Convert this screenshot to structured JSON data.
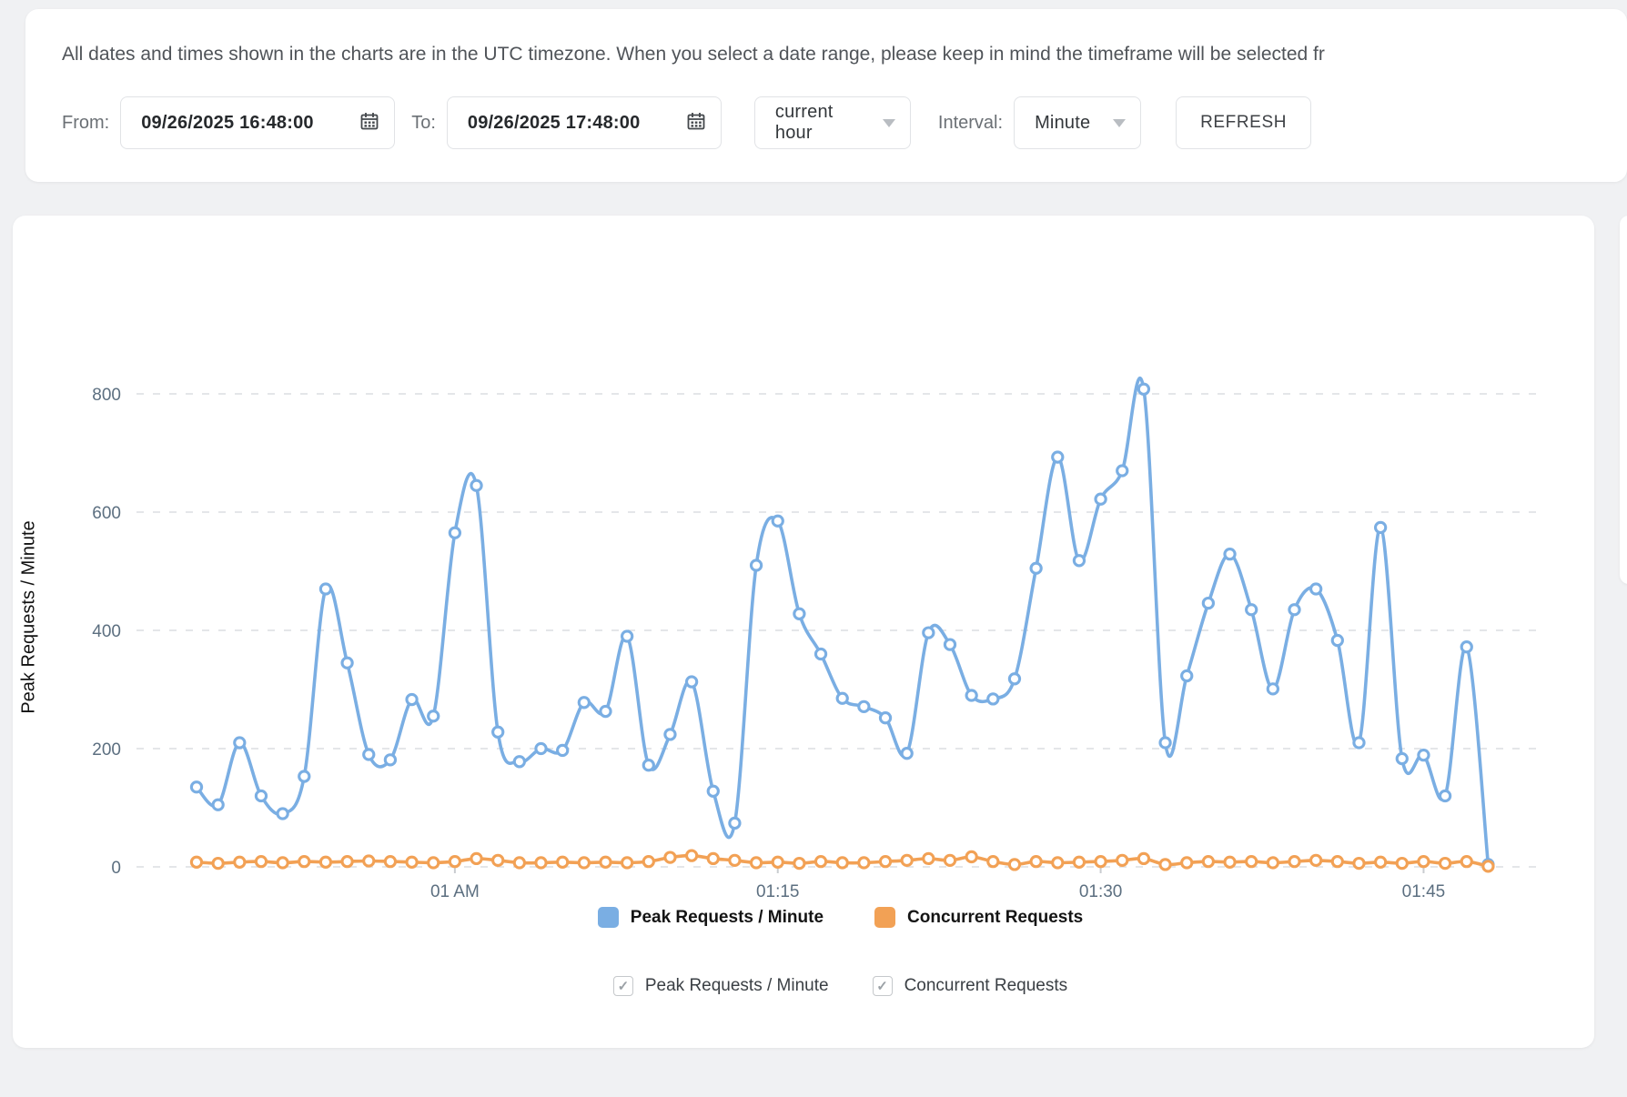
{
  "notice": "All dates and times shown in the charts are in the UTC timezone. When you select a date range, please keep in mind the timeframe will be selected fr",
  "controls": {
    "from_label": "From:",
    "from_value": "09/26/2025 16:48:00",
    "to_label": "To:",
    "to_value": "09/26/2025 17:48:00",
    "range_preset": "current hour",
    "interval_label": "Interval:",
    "interval_value": "Minute",
    "refresh_label": "REFRESH"
  },
  "icons": {
    "checkbox_check": "✓"
  },
  "colors": {
    "blue_series": "#7aaee3",
    "orange_series": "#f2a155",
    "gridline": "#e4e6e9",
    "tick_text": "#5c6f80"
  },
  "chart_data": {
    "type": "line",
    "title": "",
    "xlabel": "",
    "ylabel": "Peak Requests / Minute",
    "ylim": [
      0,
      860
    ],
    "yticks": [
      0,
      200,
      400,
      600,
      800
    ],
    "grid": "horizontal dashed",
    "legend_position": "bottom",
    "x": [
      "00:48",
      "00:49",
      "00:50",
      "00:51",
      "00:52",
      "00:53",
      "00:54",
      "00:55",
      "00:56",
      "00:57",
      "00:58",
      "00:59",
      "01:00",
      "01:01",
      "01:02",
      "01:03",
      "01:04",
      "01:05",
      "01:06",
      "01:07",
      "01:08",
      "01:09",
      "01:10",
      "01:11",
      "01:12",
      "01:13",
      "01:14",
      "01:15",
      "01:16",
      "01:17",
      "01:18",
      "01:19",
      "01:20",
      "01:21",
      "01:22",
      "01:23",
      "01:24",
      "01:25",
      "01:26",
      "01:27",
      "01:28",
      "01:29",
      "01:30",
      "01:31",
      "01:32",
      "01:33",
      "01:34",
      "01:35",
      "01:36",
      "01:37",
      "01:38",
      "01:39",
      "01:40",
      "01:41",
      "01:42",
      "01:43",
      "01:44",
      "01:45",
      "01:46",
      "01:47",
      "01:48"
    ],
    "xtick_labels": [
      "01 AM",
      "01:15",
      "01:30",
      "01:45"
    ],
    "xtick_indices": [
      12,
      27,
      42,
      57
    ],
    "series": [
      {
        "name": "Peak Requests / Minute",
        "color": "#7aaee3",
        "values": [
          135,
          105,
          210,
          120,
          90,
          153,
          470,
          345,
          190,
          181,
          283,
          255,
          565,
          645,
          228,
          178,
          200,
          197,
          278,
          263,
          390,
          172,
          224,
          313,
          128,
          74,
          510,
          585,
          428,
          360,
          285,
          271,
          252,
          192,
          396,
          376,
          290,
          284,
          318,
          505,
          693,
          518,
          622,
          670,
          808,
          210,
          323,
          446,
          529,
          435,
          301,
          435,
          470,
          383,
          210,
          574,
          183,
          189,
          120,
          372,
          4
        ]
      },
      {
        "name": "Concurrent Requests",
        "color": "#f2a155",
        "values": [
          8,
          6,
          8,
          9,
          7,
          9,
          8,
          9,
          10,
          9,
          8,
          7,
          9,
          14,
          11,
          7,
          7,
          8,
          7,
          8,
          7,
          9,
          16,
          19,
          14,
          11,
          7,
          8,
          6,
          9,
          7,
          7,
          9,
          11,
          14,
          11,
          17,
          9,
          4,
          9,
          7,
          8,
          9,
          11,
          14,
          4,
          7,
          9,
          8,
          9,
          7,
          9,
          11,
          9,
          6,
          8,
          6,
          9,
          6,
          9,
          1
        ]
      }
    ]
  },
  "legend": [
    {
      "label": "Peak Requests / Minute",
      "color": "#7aaee3"
    },
    {
      "label": "Concurrent Requests",
      "color": "#f2a155"
    }
  ],
  "toggles": [
    {
      "label": "Peak Requests / Minute",
      "checked": true
    },
    {
      "label": "Concurrent Requests",
      "checked": true
    }
  ]
}
